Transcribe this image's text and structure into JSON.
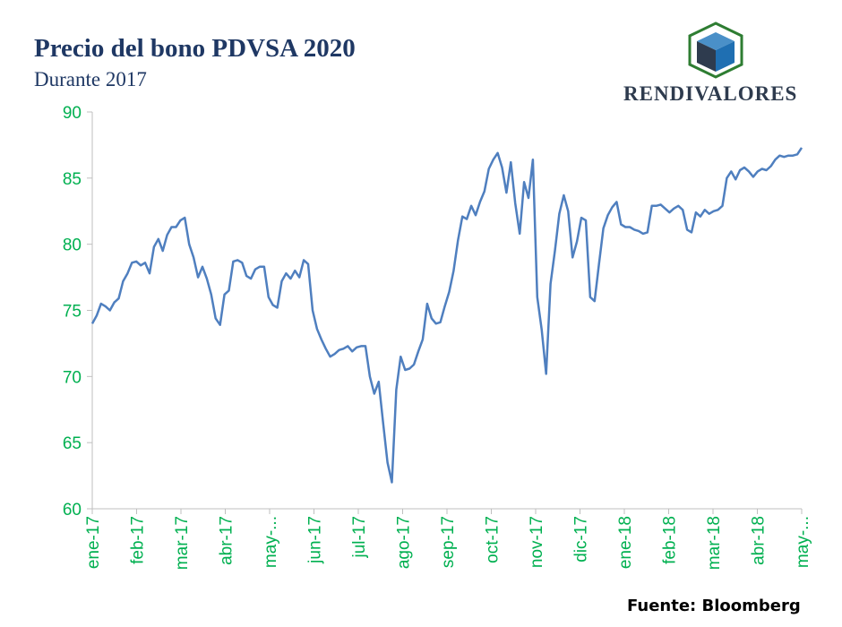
{
  "header": {
    "title": "Precio del bono PDVSA 2020",
    "subtitle": "Durante 2017"
  },
  "brand": {
    "name": "RENDIVALORES",
    "logo_icon": "cube-logo-icon"
  },
  "footer": {
    "source": "Fuente: Bloomberg"
  },
  "colors": {
    "line": "#4f7fbf",
    "ticks": "#00b050",
    "axis": "#bfbfbf",
    "title": "#1f3864"
  },
  "chart_data": {
    "type": "line",
    "title": "Precio del bono PDVSA 2020",
    "subtitle": "Durante 2017",
    "xlabel": "",
    "ylabel": "",
    "ylim": [
      60,
      90
    ],
    "yticks": [
      60,
      65,
      70,
      75,
      80,
      85,
      90
    ],
    "grid": false,
    "legend": "none",
    "x_ticks": [
      "ene-17",
      "feb-17",
      "mar-17",
      "abr-17",
      "may-...",
      "jun-17",
      "jul-17",
      "ago-17",
      "sep-17",
      "oct-17",
      "nov-17",
      "dic-17",
      "ene-18",
      "feb-18",
      "mar-18",
      "abr-18",
      "may-..."
    ],
    "series": [
      {
        "values": [
          74.0,
          74.6,
          75.5,
          75.3,
          75.0,
          75.6,
          75.9,
          77.2,
          77.8,
          78.6,
          78.7,
          78.4,
          78.6,
          77.8,
          79.8,
          80.4,
          79.5,
          80.7,
          81.3,
          81.3,
          81.8,
          82.0,
          80.0,
          79.0,
          77.5,
          78.3,
          77.4,
          76.2,
          74.4,
          73.9,
          76.2,
          76.5,
          78.7,
          78.8,
          78.6,
          77.6,
          77.4,
          78.1,
          78.3,
          78.3,
          76.0,
          75.4,
          75.2,
          77.2,
          77.8,
          77.4,
          78.0,
          77.5,
          78.8,
          78.5,
          75.0,
          73.6,
          72.8,
          72.1,
          71.5,
          71.7,
          72.0,
          72.1,
          72.3,
          71.9,
          72.2,
          72.3,
          72.3,
          70.0,
          68.7,
          69.6,
          66.5,
          63.5,
          62.0,
          69.0,
          71.5,
          70.5,
          70.6,
          70.9,
          71.9,
          72.8,
          75.5,
          74.4,
          74.0,
          74.1,
          75.3,
          76.4,
          78.0,
          80.3,
          82.1,
          81.9,
          82.9,
          82.2,
          83.2,
          84.0,
          85.7,
          86.4,
          86.9,
          85.8,
          83.9,
          86.2,
          83.1,
          80.8,
          84.7,
          83.5,
          86.4,
          76.0,
          73.5,
          70.2,
          77.0,
          79.5,
          82.3,
          83.7,
          82.5,
          79.0,
          80.2,
          82.0,
          81.8,
          76.0,
          75.7,
          78.5,
          81.2,
          82.2,
          82.8,
          83.2,
          81.5,
          81.3,
          81.3,
          81.1,
          81.0,
          80.8,
          80.9,
          82.9,
          82.9,
          83.0,
          82.7,
          82.4,
          82.7,
          82.9,
          82.6,
          81.1,
          80.9,
          82.4,
          82.1,
          82.6,
          82.3,
          82.5,
          82.6,
          82.9,
          85.0,
          85.5,
          84.9,
          85.6,
          85.8,
          85.5,
          85.1,
          85.5,
          85.7,
          85.6,
          85.9,
          86.4,
          86.7,
          86.6,
          86.7,
          86.7,
          86.8,
          87.3
        ]
      }
    ]
  }
}
